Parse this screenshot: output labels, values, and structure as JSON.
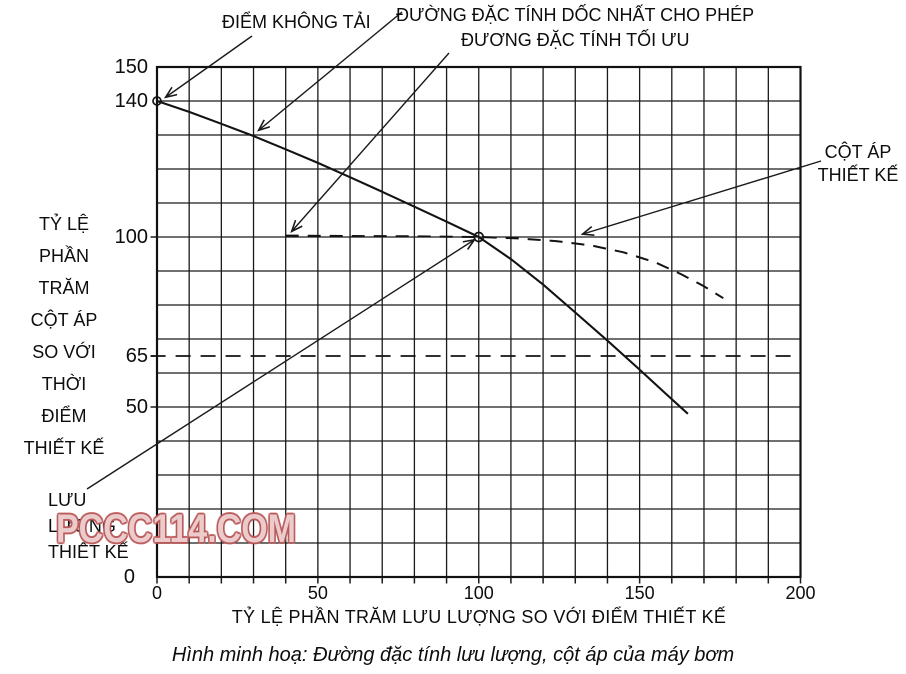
{
  "watermark": "PCCC114.COM",
  "caption": "Hình minh hoạ: Đường đặc tính lưu lượng, cột áp của máy bơm",
  "chart_data": {
    "type": "line",
    "title": "",
    "xlabel": "TỶ LỆ PHẦN TRĂM LƯU LƯỢNG SO VỚI ĐIỂM THIẾT KẾ",
    "ylabel": "TỶ LỆ\nPHẦN\nTRĂM\nCỘT ÁP\nSO VỚI\nTHỜI\nĐIỂM\nTHIẾT KẾ",
    "xlim": [
      0,
      200
    ],
    "ylim": [
      0,
      150
    ],
    "grid_step": 10,
    "grid": "on",
    "x_ticks": [
      {
        "label": "0",
        "v": 0
      },
      {
        "label": "50",
        "v": 50
      },
      {
        "label": "100",
        "v": 100
      },
      {
        "label": "150",
        "v": 150
      },
      {
        "label": "200",
        "v": 200
      }
    ],
    "y_ticks": [
      {
        "label": "150",
        "v": 150
      },
      {
        "label": "140",
        "v": 140
      },
      {
        "label": "100",
        "v": 100,
        "tick": true
      },
      {
        "label": "65",
        "v": 65,
        "tick": true
      },
      {
        "label": "50",
        "v": 50,
        "tick": true
      },
      {
        "label": "0",
        "v": 0,
        "dx": -13
      }
    ],
    "series": [
      {
        "name": "steepest-allowed-curve",
        "style": "solid",
        "points": [
          [
            0,
            140
          ],
          [
            10,
            136.8
          ],
          [
            20,
            133.3
          ],
          [
            30,
            129.7
          ],
          [
            40,
            125.8
          ],
          [
            50,
            121.8
          ],
          [
            60,
            117.6
          ],
          [
            70,
            113.3
          ],
          [
            80,
            108.9
          ],
          [
            90,
            104.5
          ],
          [
            100,
            100
          ],
          [
            110,
            93.5
          ],
          [
            120,
            86
          ],
          [
            130,
            77.8
          ],
          [
            140,
            69.5
          ],
          [
            150,
            61
          ],
          [
            158,
            54
          ],
          [
            165,
            48
          ]
        ]
      },
      {
        "name": "optimal-curve",
        "style": "dashed",
        "points": [
          [
            40,
            100.4
          ],
          [
            60,
            100.3
          ],
          [
            80,
            100.2
          ],
          [
            100,
            100
          ],
          [
            112,
            99.6
          ],
          [
            124,
            98.8
          ],
          [
            135,
            97.5
          ],
          [
            145,
            95.5
          ],
          [
            155,
            92.5
          ],
          [
            163,
            89
          ],
          [
            170,
            85.5
          ],
          [
            176,
            82
          ]
        ]
      },
      {
        "name": "design-head-level",
        "style": "dashed",
        "points": [
          [
            -2,
            65
          ],
          [
            200,
            65
          ]
        ]
      }
    ],
    "markers": [
      {
        "name": "no-load-point",
        "x": 0,
        "y": 140,
        "r": 4
      },
      {
        "name": "design-point",
        "x": 100,
        "y": 100,
        "r": 4.5
      }
    ],
    "annotations": {
      "no_load": {
        "text": "ĐIỂM KHÔNG TẢI"
      },
      "steepest": {
        "text": "ĐƯỜNG ĐẶC TÍNH DỐC NHẤT CHO PHÉP"
      },
      "optimal": {
        "text": "ĐƯƠNG ĐẶC TÍNH TỐI ƯU"
      },
      "design_head": {
        "text": "CỘT ÁP\nTHIẾT KẾ"
      },
      "design_flow": {
        "text": "LƯU\nLƯỢNG\nTHIẾT KẾ"
      }
    }
  }
}
